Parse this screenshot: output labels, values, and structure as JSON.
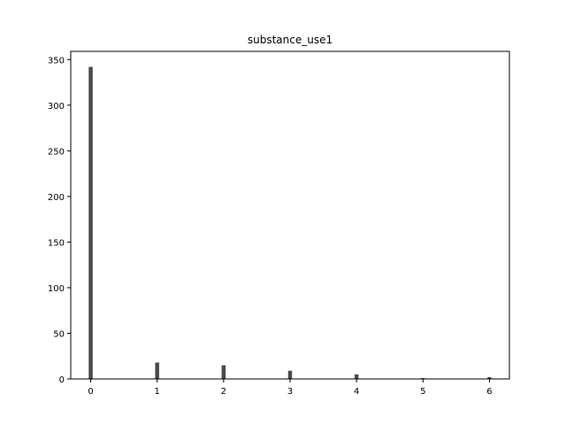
{
  "chart_data": {
    "type": "bar",
    "title": "substance_use1",
    "xlabel": "",
    "ylabel": "",
    "x": [
      0,
      1,
      2,
      3,
      4,
      5,
      6
    ],
    "values": [
      342,
      18,
      15,
      9,
      5,
      1,
      2
    ],
    "xlim": [
      -0.3,
      6.3
    ],
    "ylim": [
      0,
      359
    ],
    "x_ticks": [
      "0",
      "1",
      "2",
      "3",
      "4",
      "5",
      "6"
    ],
    "y_ticks": [
      "0",
      "50",
      "100",
      "150",
      "200",
      "250",
      "300",
      "350"
    ],
    "bar_color": "#4a4a4a",
    "grid": false,
    "legend": "none"
  }
}
